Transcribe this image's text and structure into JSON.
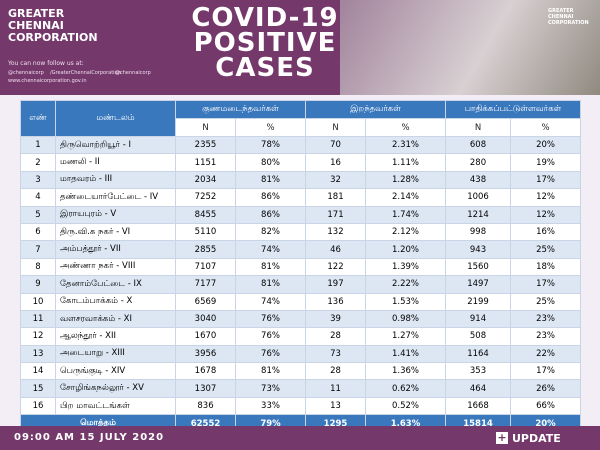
{
  "header": {
    "logo": [
      "GREATER",
      "CHENNAI",
      "CORPORATION"
    ],
    "follow": "You can now follow us at:",
    "socials": [
      "@chennaicorp",
      "/GreaterChennaiCorporation",
      "@chennaicorp"
    ],
    "website": "www.chennaicorporation.gov.in",
    "title": [
      "COVID-19",
      "POSITIVE",
      "CASES"
    ],
    "right_logo": [
      "GREATER",
      "CHENNAI",
      "CORPORATION"
    ]
  },
  "table": {
    "columns": [
      "எண்",
      "மண்டலம்",
      "குணமடைந்தவர்கள்",
      "இறந்தவர்கள்",
      "பாதிக்கப்பட்டுள்ளவர்கள்"
    ],
    "subcolumns": [
      "N",
      "%",
      "N",
      "%",
      "N",
      "%"
    ],
    "rows": [
      [
        "1",
        "திருவொற்றியூர் - I",
        "2355",
        "78%",
        "70",
        "2.31%",
        "608",
        "20%"
      ],
      [
        "2",
        "மணலி - II",
        "1151",
        "80%",
        "16",
        "1.11%",
        "280",
        "19%"
      ],
      [
        "3",
        "மாதவரம் - III",
        "2034",
        "81%",
        "32",
        "1.28%",
        "438",
        "17%"
      ],
      [
        "4",
        "தண்டையார்பேட்டை - IV",
        "7252",
        "86%",
        "181",
        "2.14%",
        "1006",
        "12%"
      ],
      [
        "5",
        "இராயபுரம் - V",
        "8455",
        "86%",
        "171",
        "1.74%",
        "1214",
        "12%"
      ],
      [
        "6",
        "திரு.வி.க நகர் - VI",
        "5110",
        "82%",
        "132",
        "2.12%",
        "998",
        "16%"
      ],
      [
        "7",
        "அம்பத்தூர் - VII",
        "2855",
        "74%",
        "46",
        "1.20%",
        "943",
        "25%"
      ],
      [
        "8",
        "அண்ணா நகர் - VIII",
        "7107",
        "81%",
        "122",
        "1.39%",
        "1560",
        "18%"
      ],
      [
        "9",
        "தேனாம்பேட்டை - IX",
        "7177",
        "81%",
        "197",
        "2.22%",
        "1497",
        "17%"
      ],
      [
        "10",
        "கோடம்பாக்கம் - X",
        "6569",
        "74%",
        "136",
        "1.53%",
        "2199",
        "25%"
      ],
      [
        "11",
        "வளசரவாக்கம் - XI",
        "3040",
        "76%",
        "39",
        "0.98%",
        "914",
        "23%"
      ],
      [
        "12",
        "ஆலந்தூர் - XII",
        "1670",
        "76%",
        "28",
        "1.27%",
        "508",
        "23%"
      ],
      [
        "13",
        "அடையாறு - XIII",
        "3956",
        "76%",
        "73",
        "1.41%",
        "1164",
        "22%"
      ],
      [
        "14",
        "பெருங்குடி - XIV",
        "1678",
        "81%",
        "28",
        "1.36%",
        "353",
        "17%"
      ],
      [
        "15",
        "சோழிங்கநல்லூர் - XV",
        "1307",
        "73%",
        "11",
        "0.62%",
        "464",
        "26%"
      ],
      [
        "16",
        "பிற மாவட்டங்கள்",
        "836",
        "33%",
        "13",
        "0.52%",
        "1668",
        "66%"
      ]
    ],
    "total": [
      "மொத்தம்",
      "62552",
      "79%",
      "1295",
      "1.63%",
      "15814",
      "20%"
    ]
  },
  "footer": {
    "date": "09:00 AM 15 JULY 2020",
    "badge": "UPDATE"
  }
}
